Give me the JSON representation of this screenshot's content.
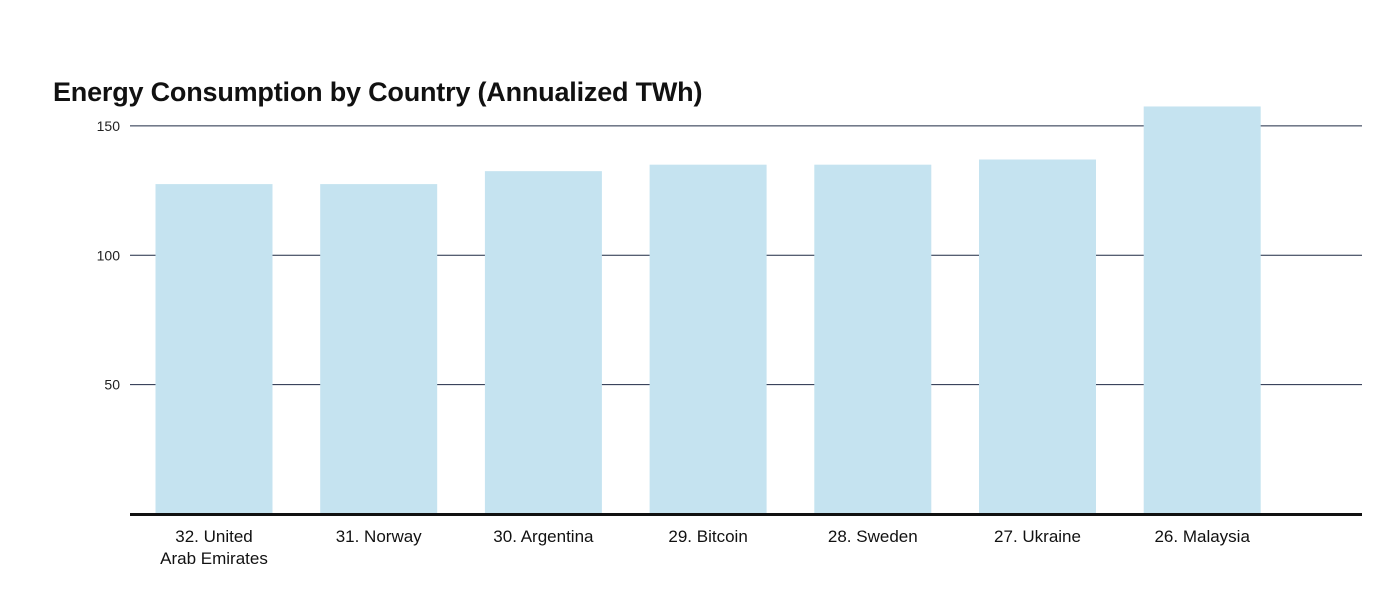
{
  "chart_data": {
    "type": "bar",
    "title": "Energy Consumption by Country (Annualized TWh)",
    "xlabel": "",
    "ylabel": "",
    "categories": [
      [
        "32. United",
        "Arab Emirates"
      ],
      [
        "31. Norway"
      ],
      [
        "30. Argentina"
      ],
      [
        "29. Bitcoin"
      ],
      [
        "28. Sweden"
      ],
      [
        "27. Ukraine"
      ],
      [
        "26. Malaysia"
      ]
    ],
    "values": [
      127.5,
      127.5,
      132.5,
      135,
      135,
      137,
      157.5
    ],
    "ylim": [
      0,
      160
    ],
    "yticks": [
      50,
      100,
      150
    ],
    "grid": true,
    "legend": "none",
    "bar_color": "#c5e3f0",
    "grid_color": "#1f2a44",
    "axis_color": "#111111"
  }
}
